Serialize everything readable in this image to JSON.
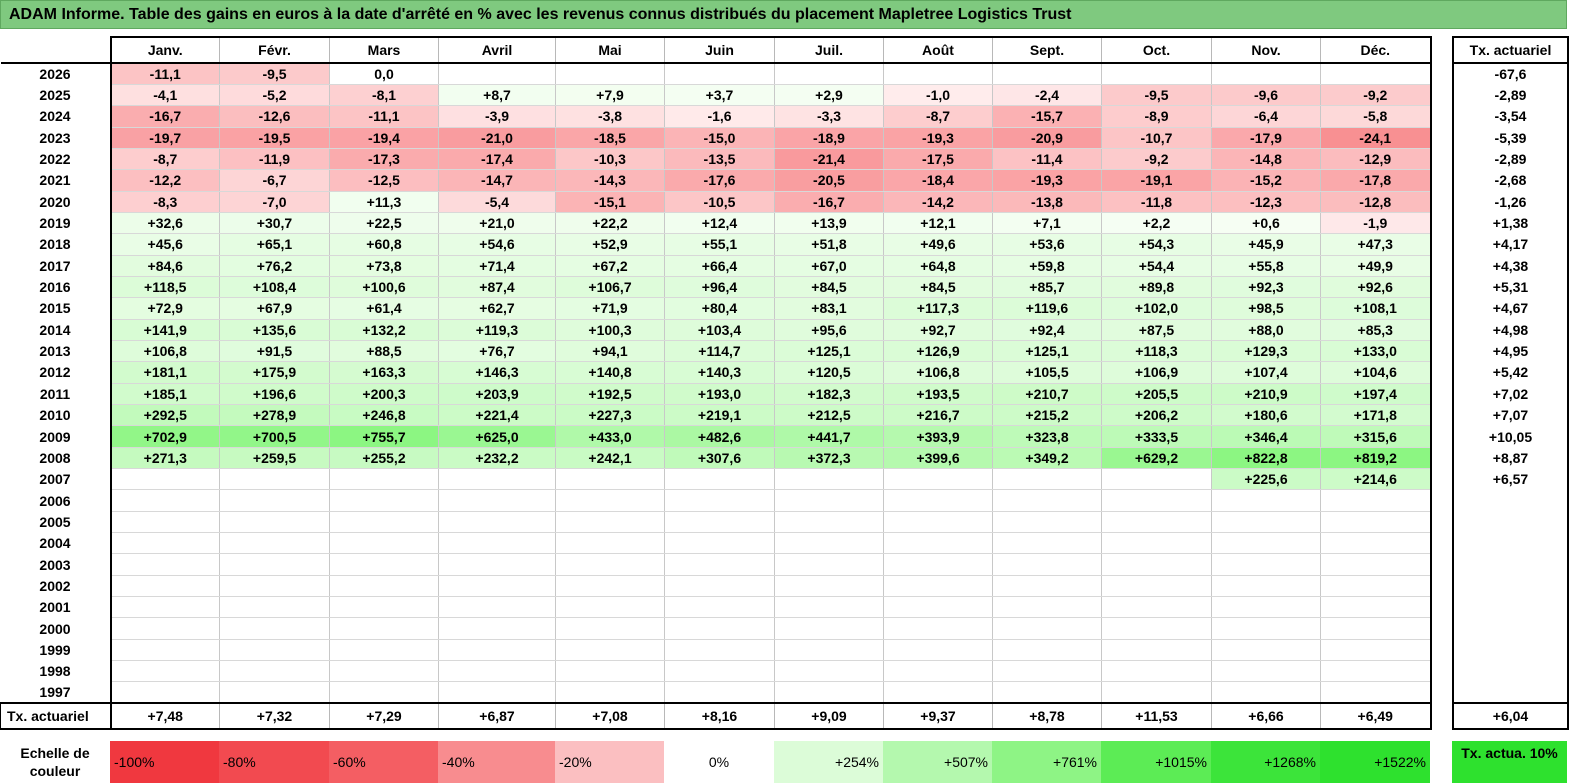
{
  "title": "ADAM Informe. Table des gains en euros à la date d'arrêté en % avec les revenus connus distribués du placement Mapletree Logistics Trust",
  "months": [
    "Janv.",
    "Févr.",
    "Mars",
    "Avril",
    "Mai",
    "Juin",
    "Juil.",
    "Août",
    "Sept.",
    "Oct.",
    "Nov.",
    "Déc."
  ],
  "side_header": "Tx. actuariel",
  "rows": [
    {
      "year": "2026",
      "values": [
        "-11,1",
        "-9,5",
        "0,0",
        "",
        "",
        "",
        "",
        "",
        "",
        "",
        "",
        ""
      ],
      "tx": "-67,6"
    },
    {
      "year": "2025",
      "values": [
        "-4,1",
        "-5,2",
        "-8,1",
        "+8,7",
        "+7,9",
        "+3,7",
        "+2,9",
        "-1,0",
        "-2,4",
        "-9,5",
        "-9,6",
        "-9,2"
      ],
      "tx": "-2,89"
    },
    {
      "year": "2024",
      "values": [
        "-16,7",
        "-12,6",
        "-11,1",
        "-3,9",
        "-3,8",
        "-1,6",
        "-3,3",
        "-8,7",
        "-15,7",
        "-8,9",
        "-6,4",
        "-5,8"
      ],
      "tx": "-3,54"
    },
    {
      "year": "2023",
      "values": [
        "-19,7",
        "-19,5",
        "-19,4",
        "-21,0",
        "-18,5",
        "-15,0",
        "-18,9",
        "-19,3",
        "-20,9",
        "-10,7",
        "-17,9",
        "-24,1"
      ],
      "tx": "-5,39"
    },
    {
      "year": "2022",
      "values": [
        "-8,7",
        "-11,9",
        "-17,3",
        "-17,4",
        "-10,3",
        "-13,5",
        "-21,4",
        "-17,5",
        "-11,4",
        "-9,2",
        "-14,8",
        "-12,9"
      ],
      "tx": "-2,89"
    },
    {
      "year": "2021",
      "values": [
        "-12,2",
        "-6,7",
        "-12,5",
        "-14,7",
        "-14,3",
        "-17,6",
        "-20,5",
        "-18,4",
        "-19,3",
        "-19,1",
        "-15,2",
        "-17,8"
      ],
      "tx": "-2,68"
    },
    {
      "year": "2020",
      "values": [
        "-8,3",
        "-7,0",
        "+11,3",
        "-5,4",
        "-15,1",
        "-10,5",
        "-16,7",
        "-14,2",
        "-13,8",
        "-11,8",
        "-12,3",
        "-12,8"
      ],
      "tx": "-1,26"
    },
    {
      "year": "2019",
      "values": [
        "+32,6",
        "+30,7",
        "+22,5",
        "+21,0",
        "+22,2",
        "+12,4",
        "+13,9",
        "+12,1",
        "+7,1",
        "+2,2",
        "+0,6",
        "-1,9"
      ],
      "tx": "+1,38"
    },
    {
      "year": "2018",
      "values": [
        "+45,6",
        "+65,1",
        "+60,8",
        "+54,6",
        "+52,9",
        "+55,1",
        "+51,8",
        "+49,6",
        "+53,6",
        "+54,3",
        "+45,9",
        "+47,3"
      ],
      "tx": "+4,17"
    },
    {
      "year": "2017",
      "values": [
        "+84,6",
        "+76,2",
        "+73,8",
        "+71,4",
        "+67,2",
        "+66,4",
        "+67,0",
        "+64,8",
        "+59,8",
        "+54,4",
        "+55,8",
        "+49,9"
      ],
      "tx": "+4,38"
    },
    {
      "year": "2016",
      "values": [
        "+118,5",
        "+108,4",
        "+100,6",
        "+87,4",
        "+106,7",
        "+96,4",
        "+84,5",
        "+84,5",
        "+85,7",
        "+89,8",
        "+92,3",
        "+92,6"
      ],
      "tx": "+5,31"
    },
    {
      "year": "2015",
      "values": [
        "+72,9",
        "+67,9",
        "+61,4",
        "+62,7",
        "+71,9",
        "+80,4",
        "+83,1",
        "+117,3",
        "+119,6",
        "+102,0",
        "+98,5",
        "+108,1"
      ],
      "tx": "+4,67"
    },
    {
      "year": "2014",
      "values": [
        "+141,9",
        "+135,6",
        "+132,2",
        "+119,3",
        "+100,3",
        "+103,4",
        "+95,6",
        "+92,7",
        "+92,4",
        "+87,5",
        "+88,0",
        "+85,3"
      ],
      "tx": "+4,98"
    },
    {
      "year": "2013",
      "values": [
        "+106,8",
        "+91,5",
        "+88,5",
        "+76,7",
        "+94,1",
        "+114,7",
        "+125,1",
        "+126,9",
        "+125,1",
        "+118,3",
        "+129,3",
        "+133,0"
      ],
      "tx": "+4,95"
    },
    {
      "year": "2012",
      "values": [
        "+181,1",
        "+175,9",
        "+163,3",
        "+146,3",
        "+140,8",
        "+140,3",
        "+120,5",
        "+106,8",
        "+105,5",
        "+106,9",
        "+107,4",
        "+104,6"
      ],
      "tx": "+5,42"
    },
    {
      "year": "2011",
      "values": [
        "+185,1",
        "+196,6",
        "+200,3",
        "+203,9",
        "+192,5",
        "+193,0",
        "+182,3",
        "+193,5",
        "+210,7",
        "+205,5",
        "+210,9",
        "+197,4"
      ],
      "tx": "+7,02"
    },
    {
      "year": "2010",
      "values": [
        "+292,5",
        "+278,9",
        "+246,8",
        "+221,4",
        "+227,3",
        "+219,1",
        "+212,5",
        "+216,7",
        "+215,2",
        "+206,2",
        "+180,6",
        "+171,8"
      ],
      "tx": "+7,07"
    },
    {
      "year": "2009",
      "values": [
        "+702,9",
        "+700,5",
        "+755,7",
        "+625,0",
        "+433,0",
        "+482,6",
        "+441,7",
        "+393,9",
        "+323,8",
        "+333,5",
        "+346,4",
        "+315,6"
      ],
      "tx": "+10,05"
    },
    {
      "year": "2008",
      "values": [
        "+271,3",
        "+259,5",
        "+255,2",
        "+232,2",
        "+242,1",
        "+307,6",
        "+372,3",
        "+399,6",
        "+349,2",
        "+629,2",
        "+822,8",
        "+819,2"
      ],
      "tx": "+8,87"
    },
    {
      "year": "2007",
      "values": [
        "",
        "",
        "",
        "",
        "",
        "",
        "",
        "",
        "",
        "",
        "+225,6",
        "+214,6"
      ],
      "tx": "+6,57"
    },
    {
      "year": "2006",
      "values": [
        "",
        "",
        "",
        "",
        "",
        "",
        "",
        "",
        "",
        "",
        "",
        ""
      ],
      "tx": ""
    },
    {
      "year": "2005",
      "values": [
        "",
        "",
        "",
        "",
        "",
        "",
        "",
        "",
        "",
        "",
        "",
        ""
      ],
      "tx": ""
    },
    {
      "year": "2004",
      "values": [
        "",
        "",
        "",
        "",
        "",
        "",
        "",
        "",
        "",
        "",
        "",
        ""
      ],
      "tx": ""
    },
    {
      "year": "2003",
      "values": [
        "",
        "",
        "",
        "",
        "",
        "",
        "",
        "",
        "",
        "",
        "",
        ""
      ],
      "tx": ""
    },
    {
      "year": "2002",
      "values": [
        "",
        "",
        "",
        "",
        "",
        "",
        "",
        "",
        "",
        "",
        "",
        ""
      ],
      "tx": ""
    },
    {
      "year": "2001",
      "values": [
        "",
        "",
        "",
        "",
        "",
        "",
        "",
        "",
        "",
        "",
        "",
        ""
      ],
      "tx": ""
    },
    {
      "year": "2000",
      "values": [
        "",
        "",
        "",
        "",
        "",
        "",
        "",
        "",
        "",
        "",
        "",
        ""
      ],
      "tx": ""
    },
    {
      "year": "1999",
      "values": [
        "",
        "",
        "",
        "",
        "",
        "",
        "",
        "",
        "",
        "",
        "",
        ""
      ],
      "tx": ""
    },
    {
      "year": "1998",
      "values": [
        "",
        "",
        "",
        "",
        "",
        "",
        "",
        "",
        "",
        "",
        "",
        ""
      ],
      "tx": ""
    },
    {
      "year": "1997",
      "values": [
        "",
        "",
        "",
        "",
        "",
        "",
        "",
        "",
        "",
        "",
        "",
        ""
      ],
      "tx": ""
    }
  ],
  "footer": {
    "label": "Tx. actuariel",
    "values": [
      "+7,48",
      "+7,32",
      "+7,29",
      "+6,87",
      "+7,08",
      "+8,16",
      "+9,09",
      "+9,37",
      "+8,78",
      "+11,53",
      "+6,66",
      "+6,49"
    ],
    "tx": "+6,04"
  },
  "scale": {
    "label": "Echelle de couleur",
    "items": [
      {
        "label": "-100%",
        "color": "#f0383f",
        "align": "left"
      },
      {
        "label": "-80%",
        "color": "#f24a50",
        "align": "left"
      },
      {
        "label": "-60%",
        "color": "#f45e63",
        "align": "left"
      },
      {
        "label": "-40%",
        "color": "#f88c8f",
        "align": "left"
      },
      {
        "label": "-20%",
        "color": "#fbbfc1",
        "align": "left"
      },
      {
        "label": "0%",
        "color": "#ffffff",
        "align": "center"
      },
      {
        "label": "+254%",
        "color": "#dcfcd8",
        "align": "right"
      },
      {
        "label": "+507%",
        "color": "#b4f8ae",
        "align": "right"
      },
      {
        "label": "+761%",
        "color": "#8ef485",
        "align": "right"
      },
      {
        "label": "+1015%",
        "color": "#5cec55",
        "align": "right"
      },
      {
        "label": "+1268%",
        "color": "#3ce43a",
        "align": "right"
      },
      {
        "label": "+1522%",
        "color": "#2ee12e",
        "align": "right"
      }
    ],
    "tx_label": "Tx. actua. 10%",
    "tx_color": "#2ee12e"
  }
}
